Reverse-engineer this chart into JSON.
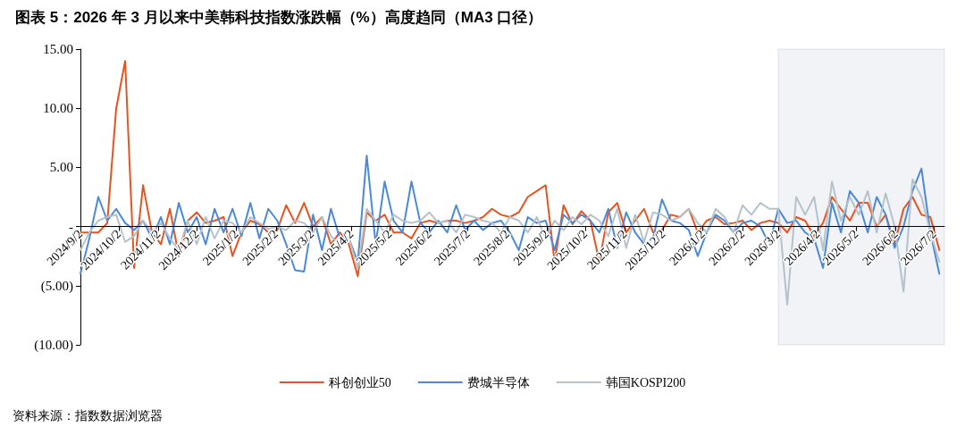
{
  "chart_data": {
    "type": "line",
    "title": "图表 5：2026 年 3 月以来中美韩科技指数涨跌幅（%）高度趋同（MA3 口径）",
    "annotations": [
      "资料来源：指数数据浏览器"
    ],
    "x": [
      "2024-09-02",
      "2024-09-09",
      "2024-09-16",
      "2024-09-23",
      "2024-09-30",
      "2024-10-07",
      "2024-10-14",
      "2024-10-21",
      "2024-10-28",
      "2024-11-04",
      "2024-11-11",
      "2024-11-18",
      "2024-11-25",
      "2024-12-02",
      "2024-12-09",
      "2024-12-16",
      "2024-12-23",
      "2024-12-30",
      "2025-01-06",
      "2025-01-13",
      "2025-01-20",
      "2025-01-27",
      "2025-02-03",
      "2025-02-10",
      "2025-02-17",
      "2025-02-24",
      "2025-03-03",
      "2025-03-10",
      "2025-03-17",
      "2025-03-24",
      "2025-03-31",
      "2025-04-07",
      "2025-04-14",
      "2025-04-21",
      "2025-04-28",
      "2025-05-05",
      "2025-05-12",
      "2025-05-19",
      "2025-05-26",
      "2025-06-02",
      "2025-06-09",
      "2025-06-16",
      "2025-06-23",
      "2025-06-30",
      "2025-07-07",
      "2025-07-14",
      "2025-07-21",
      "2025-07-28",
      "2025-08-04",
      "2025-08-11",
      "2025-08-18",
      "2025-08-25",
      "2025-09-01",
      "2025-09-08",
      "2025-09-15",
      "2025-09-22",
      "2025-09-29",
      "2025-10-06",
      "2025-10-13",
      "2025-10-20",
      "2025-10-27",
      "2025-11-03",
      "2025-11-10",
      "2025-11-17",
      "2025-11-24",
      "2025-12-01",
      "2025-12-08",
      "2025-12-15",
      "2025-12-22",
      "2025-12-29",
      "2026-01-05",
      "2026-01-12",
      "2026-01-19",
      "2026-01-26",
      "2026-02-02",
      "2026-02-09",
      "2026-02-16",
      "2026-02-23",
      "2026-03-02",
      "2026-03-09",
      "2026-03-16",
      "2026-03-23",
      "2026-03-30",
      "2026-04-06",
      "2026-04-13",
      "2026-04-20",
      "2026-04-27",
      "2026-05-04",
      "2026-05-11",
      "2026-05-18",
      "2026-05-25",
      "2026-06-01",
      "2026-06-08",
      "2026-06-15",
      "2026-06-22",
      "2026-06-29",
      "2026-07-06"
    ],
    "series": [
      {
        "name": "科创创业50",
        "color": "#e8531f",
        "values": [
          -0.5,
          -0.5,
          -0.5,
          0.3,
          10,
          14,
          -3.5,
          3.5,
          -0.5,
          -1.5,
          1.5,
          -2.5,
          0.5,
          1.2,
          0.3,
          0.5,
          0.8,
          -2.5,
          -0.5,
          0.5,
          0.2,
          -0.5,
          -0.3,
          1.8,
          0.3,
          2.0,
          0,
          0.8,
          -1.5,
          -0.5,
          -1.5,
          -4.2,
          1.2,
          0.5,
          1.0,
          -0.5,
          -0.5,
          -1.0,
          0.3,
          0.5,
          0.3,
          0.5,
          0.5,
          0.3,
          0.5,
          0.8,
          1.5,
          1.0,
          0.8,
          1.2,
          2.5,
          3.0,
          3.5,
          -3.0,
          1.8,
          0.2,
          1.3,
          0.5,
          -3.0,
          1.2,
          2.0,
          -0.5,
          0.5,
          1.5,
          -0.5,
          -0.3,
          1.0,
          0.8,
          1.5,
          -0.5,
          0.5,
          0.8,
          0.2,
          0.3,
          0.5,
          -0.3,
          0.3,
          0.5,
          0.3,
          -0.5,
          0.8,
          0.5,
          -0.8,
          0.3,
          2.5,
          1.5,
          0.5,
          2.0,
          2.0,
          0,
          1.0,
          -1.5,
          1.5,
          2.5,
          1.0,
          0.8,
          -2.0
        ]
      },
      {
        "name": "费城半导体",
        "color": "#4a8ad8",
        "values": [
          -4.0,
          -1.0,
          2.5,
          0.5,
          1.5,
          0.3,
          -0.3,
          0.5,
          -1.0,
          0.8,
          -1.5,
          2.0,
          -0.5,
          0.8,
          -1.5,
          1.5,
          -0.5,
          1.5,
          -0.8,
          2.0,
          -1.0,
          1.5,
          0.5,
          -1.5,
          -3.7,
          -3.8,
          1.0,
          -2.0,
          1.5,
          -1.0,
          -1.0,
          -3.0,
          6.0,
          -1.5,
          3.8,
          0.5,
          -0.5,
          3.8,
          0.3,
          -0.5,
          0.5,
          -0.5,
          1.8,
          -0.3,
          0.5,
          -0.3,
          0.3,
          0.5,
          -0.5,
          -2.0,
          0.8,
          0.3,
          0.5,
          -2.0,
          1.0,
          0.3,
          1.0,
          0.5,
          -0.5,
          1.5,
          -1.8,
          1.2,
          -0.5,
          -1.5,
          -1.0,
          2.3,
          0.5,
          0.3,
          -0.3,
          -2.5,
          -0.5,
          1.0,
          0.5,
          -0.5,
          0.3,
          0.5,
          0,
          -1.5,
          1.5,
          0.3,
          0.5,
          -0.5,
          -1.0,
          -3.5,
          2.0,
          -0.5,
          3.0,
          2.0,
          -0.5,
          2.5,
          1.0,
          -1.8,
          0,
          3.0,
          4.9,
          -0.5,
          -4.0
        ]
      },
      {
        "name": "韩国KOSPI200",
        "color": "#b4c2cc",
        "values": [
          -2.0,
          -0.5,
          0.5,
          0.8,
          1.0,
          -1.3,
          -0.8,
          0.5,
          -0.5,
          0.3,
          -1.0,
          -2.0,
          0.5,
          -1.5,
          0.8,
          -1.0,
          0.5,
          0.3,
          -0.5,
          0.8,
          0.3,
          -0.2,
          0,
          -0.3,
          0.5,
          0.3,
          -0.5,
          0.8,
          -0.8,
          -1.5,
          -1.0,
          -3.5,
          1.5,
          0.5,
          -0.5,
          1.0,
          0.5,
          0.3,
          0.5,
          1.2,
          0.3,
          0.5,
          -0.5,
          1.0,
          0.8,
          0.5,
          0.3,
          -0.5,
          0.8,
          0.5,
          -0.5,
          0.8,
          -1.0,
          0.5,
          -0.3,
          0.8,
          0.2,
          1.0,
          0.5,
          -0.8,
          1.5,
          -1.8,
          1.0,
          -1.3,
          1.2,
          1.0,
          0.5,
          0.8,
          1.5,
          0.3,
          -0.5,
          1.5,
          0.8,
          -0.5,
          1.8,
          1.0,
          2.0,
          1.5,
          1.5,
          -6.6,
          2.5,
          1.0,
          2.5,
          -2.0,
          3.8,
          0.5,
          2.5,
          1.0,
          3.0,
          -0.5,
          2.8,
          0,
          -5.5,
          4.0,
          2.5,
          -0.5,
          -3.0
        ]
      }
    ],
    "xlim": [
      "2024-09-02",
      "2026-07-10"
    ],
    "xticks": [
      {
        "value": "2024-09-02",
        "label": "2024/9/2"
      },
      {
        "value": "2024-10-02",
        "label": "2024/10/2"
      },
      {
        "value": "2024-11-02",
        "label": "2024/11/2"
      },
      {
        "value": "2024-12-02",
        "label": "2024/12/2"
      },
      {
        "value": "2025-01-02",
        "label": "2025/1/2"
      },
      {
        "value": "2025-02-02",
        "label": "2025/2/2"
      },
      {
        "value": "2025-03-02",
        "label": "2025/3/2"
      },
      {
        "value": "2025-04-02",
        "label": "2025/4/2"
      },
      {
        "value": "2025-05-02",
        "label": "2025/5/2"
      },
      {
        "value": "2025-06-02",
        "label": "2025/6/2"
      },
      {
        "value": "2025-07-02",
        "label": "2025/7/2"
      },
      {
        "value": "2025-08-02",
        "label": "2025/8/2"
      },
      {
        "value": "2025-09-02",
        "label": "2025/9/2"
      },
      {
        "value": "2025-10-02",
        "label": "2025/10/2"
      },
      {
        "value": "2025-11-02",
        "label": "2025/11/2"
      },
      {
        "value": "2025-12-02",
        "label": "2025/12/2"
      },
      {
        "value": "2026-01-02",
        "label": "2026/1/2"
      },
      {
        "value": "2026-02-02",
        "label": "2026/2/2"
      },
      {
        "value": "2026-03-02",
        "label": "2026/3/2"
      },
      {
        "value": "2026-04-02",
        "label": "2026/4/2"
      },
      {
        "value": "2026-05-02",
        "label": "2026/5/2"
      },
      {
        "value": "2026-06-02",
        "label": "2026/6/2"
      },
      {
        "value": "2026-07-02",
        "label": "2026/7/2"
      }
    ],
    "ylim": [
      -10,
      15
    ],
    "yticks": [
      {
        "value": -10,
        "label": "(10.00)"
      },
      {
        "value": -5,
        "label": "(5.00)"
      },
      {
        "value": 0,
        "label": "-"
      },
      {
        "value": 5,
        "label": "5.00"
      },
      {
        "value": 10,
        "label": "10.00"
      },
      {
        "value": 15,
        "label": "15.00"
      }
    ],
    "bands": [
      {
        "axis": "x",
        "from": "2026-03-02",
        "to": "2026-07-10",
        "color": "#1f3864"
      }
    ],
    "grid": false,
    "legend": "bottom",
    "marker": "none",
    "line_style": "solid"
  }
}
